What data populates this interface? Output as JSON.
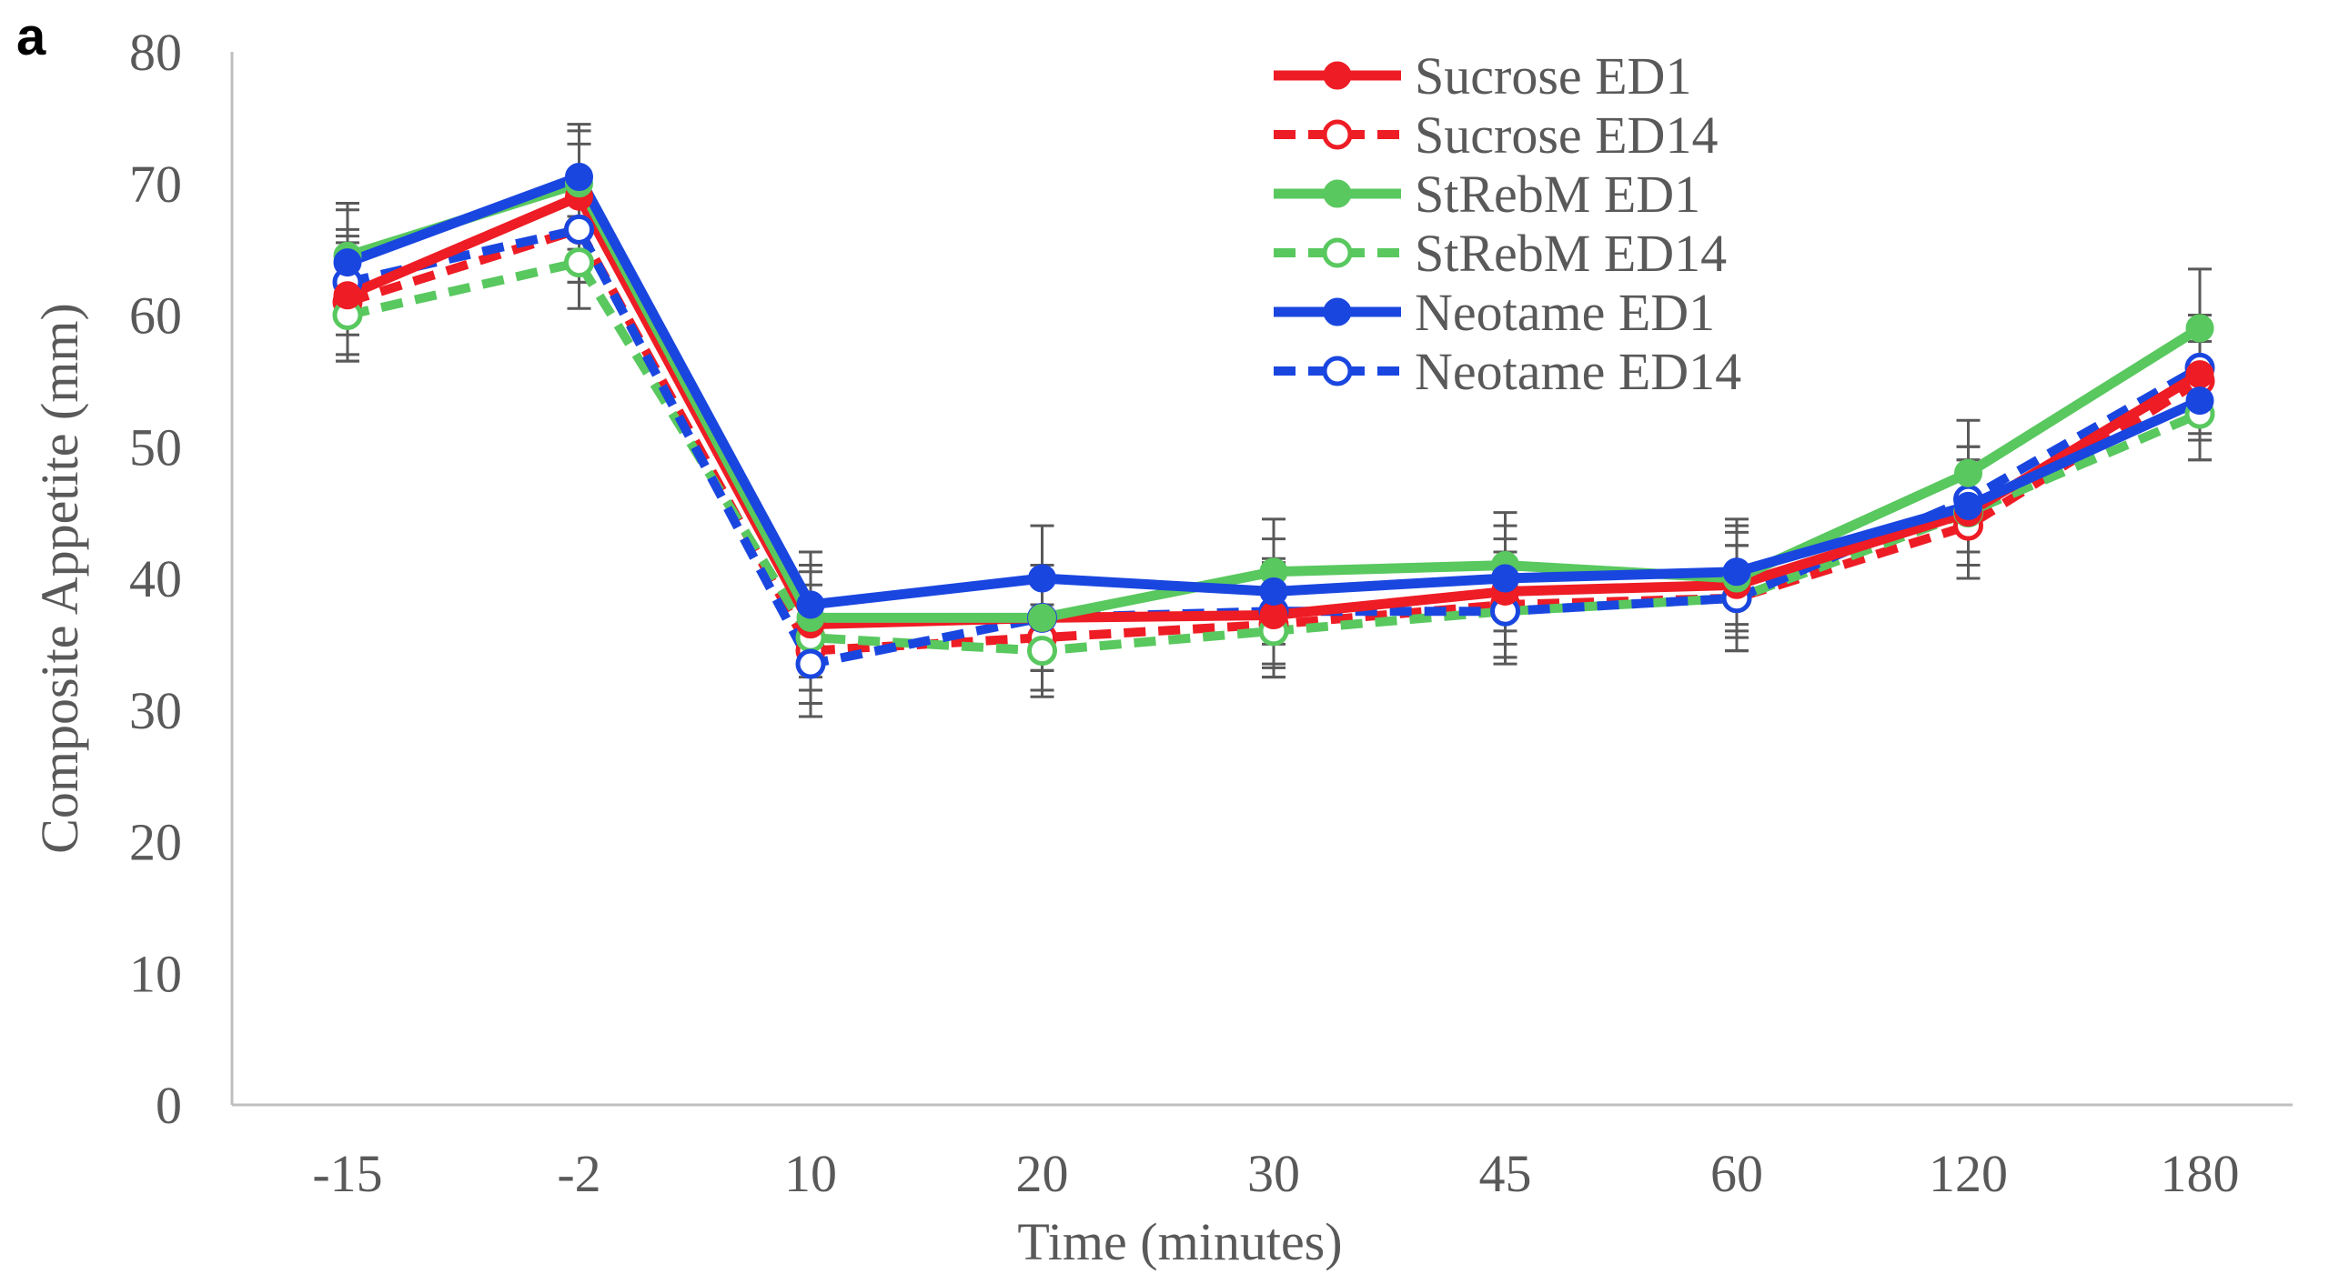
{
  "panel_label": "a",
  "chart_data": {
    "type": "line",
    "title": "",
    "xlabel": "Time (minutes)",
    "ylabel": "Composite Appetite (mm)",
    "categories": [
      "-15",
      "-2",
      "10",
      "20",
      "30",
      "45",
      "60",
      "120",
      "180"
    ],
    "ylim": [
      0,
      80
    ],
    "yticks": [
      "0",
      "10",
      "20",
      "30",
      "40",
      "50",
      "60",
      "70",
      "80"
    ],
    "grid": false,
    "legend_position": "top-right",
    "error_bar_color": "#595959",
    "series": [
      {
        "name": "Sucrose ED1",
        "color": "#ee1c24",
        "dashed": false,
        "filled": true,
        "values": [
          61.5,
          69.0,
          36.5,
          37.0,
          37.2,
          39.0,
          39.5,
          45.0,
          55.5
        ],
        "errors": [
          4.5,
          4.0,
          4.0,
          4.0,
          4.0,
          4.0,
          4.0,
          4.0,
          4.5
        ]
      },
      {
        "name": "Sucrose ED14",
        "color": "#ee1c24",
        "dashed": true,
        "filled": false,
        "values": [
          61.0,
          66.5,
          34.5,
          35.5,
          36.5,
          38.0,
          38.5,
          44.0,
          55.0
        ],
        "errors": [
          4.5,
          4.0,
          4.0,
          4.0,
          4.0,
          4.0,
          4.0,
          4.0,
          4.5
        ]
      },
      {
        "name": "StRebM ED1",
        "color": "#59c85f",
        "dashed": false,
        "filled": true,
        "values": [
          64.5,
          70.0,
          37.0,
          37.0,
          40.5,
          41.0,
          40.0,
          48.0,
          59.0
        ],
        "errors": [
          4.0,
          4.0,
          4.0,
          4.0,
          4.0,
          4.0,
          4.0,
          4.0,
          4.5
        ]
      },
      {
        "name": "StRebM ED14",
        "color": "#59c85f",
        "dashed": true,
        "filled": false,
        "values": [
          60.0,
          64.0,
          35.5,
          34.5,
          36.0,
          37.5,
          38.5,
          45.0,
          52.5
        ],
        "errors": [
          3.5,
          3.5,
          4.0,
          3.5,
          3.5,
          3.5,
          4.0,
          4.0,
          3.5
        ]
      },
      {
        "name": "Neotame ED1",
        "color": "#1a46e0",
        "dashed": false,
        "filled": true,
        "values": [
          64.0,
          70.5,
          38.0,
          40.0,
          39.0,
          40.0,
          40.5,
          45.5,
          53.5
        ],
        "errors": [
          4.0,
          4.0,
          4.0,
          4.0,
          4.0,
          4.0,
          4.0,
          4.5,
          4.5
        ]
      },
      {
        "name": "Neotame ED14",
        "color": "#1a46e0",
        "dashed": true,
        "filled": false,
        "values": [
          62.5,
          66.5,
          33.5,
          37.0,
          37.5,
          37.5,
          38.5,
          46.0,
          56.0
        ],
        "errors": [
          4.0,
          4.0,
          4.0,
          4.0,
          4.0,
          4.0,
          4.0,
          4.0,
          4.0
        ]
      }
    ]
  }
}
